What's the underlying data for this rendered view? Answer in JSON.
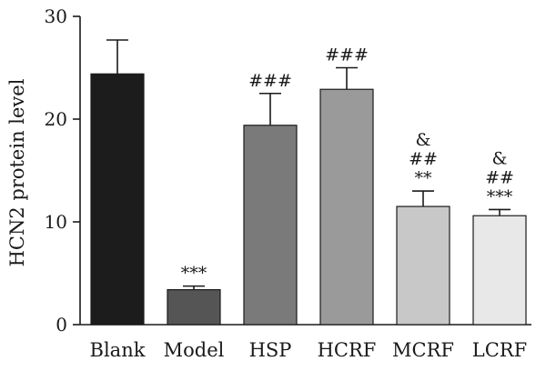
{
  "chart_data": {
    "type": "bar",
    "categories": [
      "Blank",
      "Model",
      "HSP",
      "HCRF",
      "MCRF",
      "LCRF"
    ],
    "values": [
      24.4,
      3.4,
      19.4,
      22.9,
      11.5,
      10.6
    ],
    "errors": [
      3.3,
      0.35,
      3.1,
      2.1,
      1.5,
      0.6
    ],
    "colors": [
      "#1c1c1c",
      "#555555",
      "#7a7a7a",
      "#9a9a9a",
      "#c8c8c8",
      "#e8e8e8"
    ],
    "annotations": [
      [],
      [
        "***"
      ],
      [
        "###"
      ],
      [
        "###"
      ],
      [
        "&",
        "##",
        "**"
      ],
      [
        "&",
        "##",
        "***"
      ]
    ],
    "ylabel": "HCN2 protein level",
    "xlabel": "",
    "title": "",
    "ylim": [
      0,
      30
    ],
    "yticks": [
      0,
      10,
      20,
      30
    ],
    "grid": false,
    "legend": "none"
  }
}
